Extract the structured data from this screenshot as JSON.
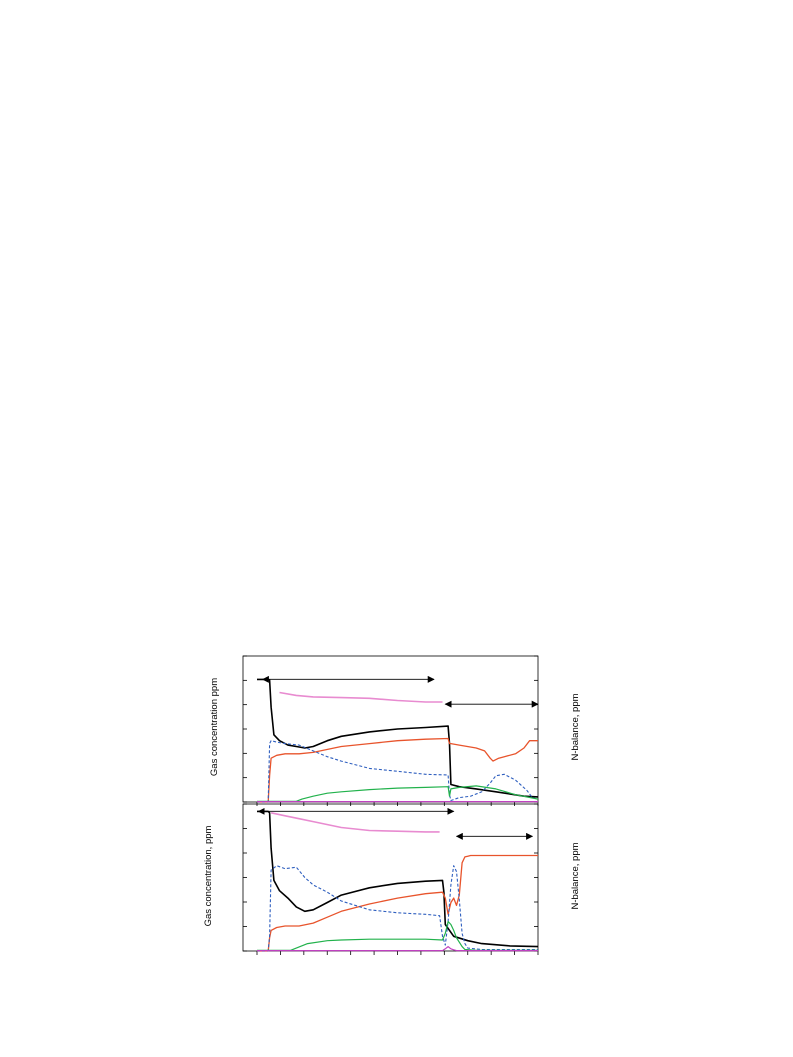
{
  "colors": {
    "total": "#000000",
    "orange": "#e8542c",
    "blue": "#2f5fbf",
    "green": "#22b24c",
    "pink": "#e88bd0",
    "magenta": "#c040c0",
    "axis": "#000000"
  },
  "chart_data": [
    {
      "type": "line",
      "panel": "top",
      "ylabel": "Gas concentration ppm",
      "y2label": "N-balance, ppm",
      "xlim": [
        0,
        100
      ],
      "ylim": [
        0,
        100
      ],
      "grid": false,
      "arrows": [
        {
          "x1": 2,
          "x2": 63,
          "y": 84,
          "heads": "both"
        },
        {
          "x1": 67,
          "x2": 100,
          "y": 67,
          "heads": "both"
        }
      ],
      "series": [
        {
          "color_key": "total",
          "dash": "",
          "width": 1.6,
          "x": [
            0,
            4,
            4.5,
            5,
            6,
            8,
            11,
            14,
            17,
            20,
            25,
            30,
            40,
            50,
            60,
            68,
            68.5,
            69,
            72,
            78,
            85,
            95,
            100
          ],
          "y": [
            84,
            84,
            83.5,
            65,
            46,
            42,
            39,
            38,
            37,
            38,
            42,
            45,
            48,
            50,
            51,
            52,
            40,
            12,
            10.5,
            9,
            7,
            4,
            3.5
          ]
        },
        {
          "color_key": "orange",
          "dash": "",
          "width": 1.3,
          "x": [
            0,
            4,
            4.5,
            5,
            7,
            10,
            15,
            20,
            30,
            40,
            50,
            60,
            68,
            68.5,
            69,
            72,
            78,
            81,
            83,
            84,
            86,
            88,
            92,
            95,
            97,
            100
          ],
          "y": [
            0,
            0,
            18,
            30,
            32,
            33,
            33,
            34,
            38,
            40,
            42,
            43,
            43.5,
            40,
            40,
            39,
            37,
            35,
            30,
            28,
            30,
            31,
            33,
            37,
            42,
            42
          ]
        },
        {
          "color_key": "blue",
          "dash": "3 2",
          "width": 1.1,
          "x": [
            0,
            4,
            4.5,
            5,
            7,
            10,
            15,
            20,
            25,
            30,
            40,
            50,
            60,
            68,
            68.5,
            69,
            72,
            76,
            80,
            83,
            85,
            88,
            92,
            96,
            98,
            100
          ],
          "y": [
            0,
            0,
            40,
            42,
            41,
            40,
            39,
            35,
            31,
            28,
            23,
            21,
            19,
            18.5,
            5,
            1,
            3,
            4,
            7,
            13,
            18,
            19,
            15,
            8,
            3,
            2
          ]
        },
        {
          "color_key": "green",
          "dash": "",
          "width": 1.2,
          "x": [
            0,
            14,
            16,
            20,
            25,
            30,
            40,
            50,
            60,
            68,
            68.5,
            69,
            72,
            78,
            85,
            92,
            100
          ],
          "y": [
            0.5,
            0.5,
            2,
            4,
            6,
            7,
            8.5,
            9.5,
            10,
            10.5,
            4,
            9,
            10,
            11,
            9,
            5,
            2
          ]
        },
        {
          "color_key": "pink",
          "dash": "",
          "width": 1.6,
          "x": [
            8,
            14,
            20,
            30,
            40,
            50,
            60,
            66
          ],
          "y": [
            75,
            73,
            72,
            71.5,
            71,
            69.5,
            68.5,
            68.5
          ]
        },
        {
          "color_key": "magenta",
          "dash": "",
          "width": 1.2,
          "x": [
            0,
            100
          ],
          "y": [
            0.3,
            0.3
          ]
        }
      ]
    },
    {
      "type": "line",
      "panel": "bottom",
      "ylabel": "Gas concentration, ppm",
      "y2label": "N-balance, ppm",
      "xlim": [
        0,
        100
      ],
      "ylim": [
        0,
        100
      ],
      "grid": false,
      "arrows": [
        {
          "x1": 0.5,
          "x2": 70,
          "y": 95,
          "heads": "both"
        },
        {
          "x1": 71,
          "x2": 98,
          "y": 78,
          "heads": "both"
        }
      ],
      "series": [
        {
          "color_key": "total",
          "dash": "",
          "width": 1.6,
          "x": [
            0,
            4,
            4.5,
            5,
            6,
            8,
            11,
            14,
            17,
            20,
            25,
            30,
            40,
            50,
            60,
            66,
            66.5,
            67,
            70,
            75,
            80,
            90,
            100
          ],
          "y": [
            95,
            95,
            94,
            70,
            48,
            41,
            36,
            30,
            27,
            28,
            33,
            38,
            43,
            46,
            47.5,
            48,
            40,
            18,
            10,
            7,
            5,
            3.5,
            3
          ]
        },
        {
          "color_key": "orange",
          "dash": "",
          "width": 1.3,
          "x": [
            0,
            4,
            4.5,
            5,
            7,
            10,
            15,
            20,
            25,
            30,
            40,
            50,
            60,
            66,
            67,
            68,
            69,
            70,
            71,
            72,
            73,
            74,
            75,
            76,
            80,
            90,
            100
          ],
          "y": [
            0,
            0,
            9,
            14,
            16,
            17,
            17,
            19,
            23,
            27,
            32,
            36,
            39,
            40,
            36,
            25,
            33,
            36,
            31,
            38,
            60,
            64,
            64.5,
            65,
            65,
            65,
            65
          ]
        },
        {
          "color_key": "blue",
          "dash": "3 2",
          "width": 1.1,
          "x": [
            0,
            4,
            4.5,
            5,
            7,
            10,
            14,
            17,
            20,
            25,
            30,
            40,
            50,
            60,
            65,
            66,
            67,
            68,
            69,
            70,
            71,
            72,
            73,
            74,
            75,
            80,
            100
          ],
          "y": [
            0,
            0,
            10,
            55,
            58,
            56,
            57,
            50,
            45,
            40,
            34,
            28,
            26,
            25,
            24,
            10,
            4,
            20,
            45,
            58,
            54,
            35,
            12,
            5,
            2,
            1,
            1
          ]
        },
        {
          "color_key": "green",
          "dash": "",
          "width": 1.2,
          "x": [
            0,
            12,
            14,
            18,
            25,
            30,
            40,
            50,
            60,
            66,
            67,
            68,
            69,
            70,
            71,
            72,
            73,
            74,
            78,
            100
          ],
          "y": [
            0.5,
            0.5,
            2,
            5,
            7,
            7.5,
            8,
            8,
            8,
            7.5,
            12,
            20,
            18,
            14,
            9,
            6,
            3,
            1,
            0.5,
            0.5
          ]
        },
        {
          "color_key": "pink",
          "dash": "",
          "width": 1.6,
          "x": [
            5,
            10,
            15,
            20,
            30,
            40,
            50,
            60,
            65
          ],
          "y": [
            94,
            92,
            90,
            88,
            84,
            82,
            81.5,
            81,
            81
          ]
        },
        {
          "color_key": "magenta",
          "dash": "",
          "width": 1.2,
          "x": [
            0,
            66,
            67,
            68,
            69,
            70,
            71,
            100
          ],
          "y": [
            0.3,
            0.3,
            1.5,
            3,
            1.5,
            0.8,
            0.3,
            0.3
          ]
        }
      ]
    }
  ]
}
